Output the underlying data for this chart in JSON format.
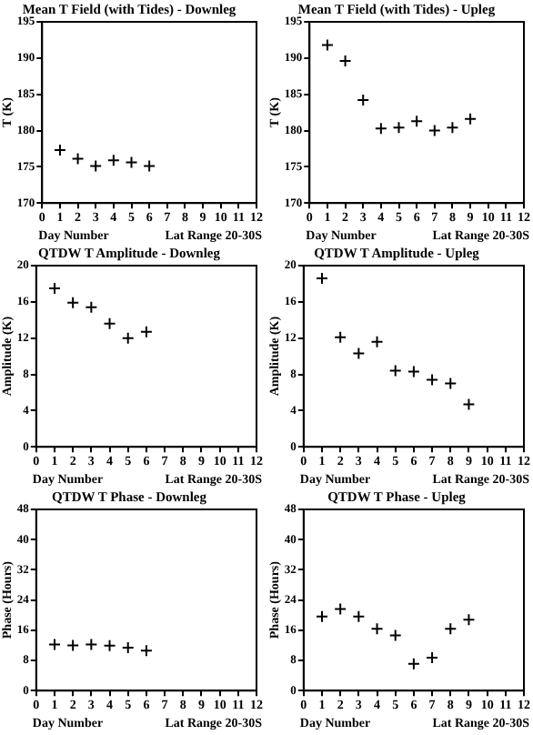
{
  "chart_data": [
    {
      "type": "scatter",
      "title": "Mean T Field (with Tides) - Downleg",
      "xlabel": "Day Number",
      "ylabel": "T (K)",
      "annotations": [
        "Lat Range 20-30S"
      ],
      "x": [
        1,
        2,
        3,
        4,
        5,
        6
      ],
      "values": [
        177.3,
        176.1,
        175.1,
        175.9,
        175.6,
        175.1
      ],
      "color": "#000000",
      "marker": "cross",
      "xlim": [
        0,
        12
      ],
      "xticks": [
        0,
        1,
        2,
        3,
        4,
        5,
        6,
        7,
        8,
        9,
        10,
        11,
        12
      ],
      "ylim": [
        170,
        195
      ],
      "yticks": [
        170,
        175,
        180,
        185,
        190,
        195
      ],
      "grid": false,
      "legend": false
    },
    {
      "type": "scatter",
      "title": "Mean T Field (with Tides) - Upleg",
      "xlabel": "Day Number",
      "ylabel": "T (K)",
      "annotations": [
        "Lat Range 20-30S"
      ],
      "x": [
        1,
        2,
        3,
        4,
        5,
        6,
        7,
        8,
        9
      ],
      "values": [
        191.8,
        189.6,
        184.2,
        180.3,
        180.4,
        181.3,
        180.0,
        180.4,
        181.6
      ],
      "color": "#000000",
      "marker": "cross",
      "xlim": [
        0,
        12
      ],
      "xticks": [
        0,
        1,
        2,
        3,
        4,
        5,
        6,
        7,
        8,
        9,
        10,
        11,
        12
      ],
      "ylim": [
        170,
        195
      ],
      "yticks": [
        170,
        175,
        180,
        185,
        190,
        195
      ],
      "grid": false,
      "legend": false
    },
    {
      "type": "scatter",
      "title": "QTDW T Amplitude - Downleg",
      "xlabel": "Day Number",
      "ylabel": "Amplitude (K)",
      "annotations": [
        "Lat Range 20-30S"
      ],
      "x": [
        1,
        2,
        3,
        4,
        5,
        6
      ],
      "values": [
        17.5,
        15.9,
        15.4,
        13.6,
        12.0,
        12.7
      ],
      "color": "#000000",
      "marker": "cross",
      "xlim": [
        0,
        12
      ],
      "xticks": [
        0,
        1,
        2,
        3,
        4,
        5,
        6,
        7,
        8,
        9,
        10,
        11,
        12
      ],
      "ylim": [
        0,
        20
      ],
      "yticks": [
        0,
        4,
        8,
        12,
        16,
        20
      ],
      "grid": false,
      "legend": false
    },
    {
      "type": "scatter",
      "title": "QTDW T Amplitude - Upleg",
      "xlabel": "Day Number",
      "ylabel": "Amplitude (K)",
      "annotations": [
        "Lat Range 20-30S"
      ],
      "x": [
        1,
        2,
        3,
        4,
        5,
        6,
        7,
        8,
        9
      ],
      "values": [
        18.6,
        12.1,
        10.3,
        11.6,
        8.4,
        8.3,
        7.4,
        7.0,
        4.7
      ],
      "color": "#000000",
      "marker": "cross",
      "xlim": [
        0,
        12
      ],
      "xticks": [
        0,
        1,
        2,
        3,
        4,
        5,
        6,
        7,
        8,
        9,
        10,
        11,
        12
      ],
      "ylim": [
        0,
        20
      ],
      "yticks": [
        0,
        4,
        8,
        12,
        16,
        20
      ],
      "grid": false,
      "legend": false
    },
    {
      "type": "scatter",
      "title": "QTDW T Phase - Downleg",
      "xlabel": "Day Number",
      "ylabel": "Phase (Hours)",
      "annotations": [
        "Lat Range 20-30S"
      ],
      "x": [
        1,
        2,
        3,
        4,
        5,
        6
      ],
      "values": [
        12.2,
        12.0,
        12.2,
        11.9,
        11.4,
        10.6
      ],
      "color": "#000000",
      "marker": "cross",
      "xlim": [
        0,
        12
      ],
      "xticks": [
        0,
        1,
        2,
        3,
        4,
        5,
        6,
        7,
        8,
        9,
        10,
        11,
        12
      ],
      "ylim": [
        0,
        48
      ],
      "yticks": [
        0,
        8,
        16,
        24,
        32,
        40,
        48
      ],
      "grid": false,
      "legend": false
    },
    {
      "type": "scatter",
      "title": "QTDW T Phase - Upleg",
      "xlabel": "Day Number",
      "ylabel": "Phase (Hours)",
      "annotations": [
        "Lat Range 20-30S"
      ],
      "x": [
        1,
        2,
        3,
        4,
        5,
        6,
        7,
        8,
        9
      ],
      "values": [
        19.6,
        21.6,
        19.6,
        16.4,
        14.6,
        7.1,
        8.7,
        16.4,
        18.8
      ],
      "color": "#000000",
      "marker": "cross",
      "xlim": [
        0,
        12
      ],
      "xticks": [
        0,
        1,
        2,
        3,
        4,
        5,
        6,
        7,
        8,
        9,
        10,
        11,
        12
      ],
      "ylim": [
        0,
        48
      ],
      "yticks": [
        0,
        8,
        16,
        24,
        32,
        40,
        48
      ],
      "grid": false,
      "legend": false
    }
  ]
}
